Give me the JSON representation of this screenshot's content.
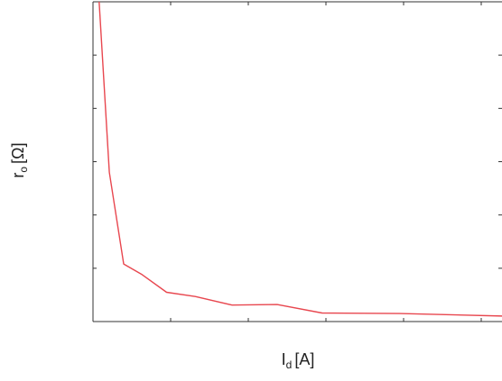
{
  "chart_data": {
    "type": "line",
    "title": "",
    "xlabel": "I",
    "xlabel_sub": "d",
    "xlabel_unit": "[A]",
    "ylabel": "r",
    "ylabel_sub": "o",
    "ylabel_unit": "[Ω]",
    "tick_labels_shown": false,
    "grid": false,
    "legend": "none",
    "xlim": [
      0,
      10
    ],
    "ylim": [
      0,
      6
    ],
    "x_tick_count": 10,
    "y_tick_count": 6,
    "series": [
      {
        "color": "#e8474f",
        "x": [
          0.15,
          0.4,
          0.75,
          1.2,
          1.8,
          2.5,
          3.4,
          4.5,
          5.6,
          7.5,
          10.2
        ],
        "y": [
          6.0,
          2.8,
          1.08,
          0.88,
          0.55,
          0.47,
          0.31,
          0.32,
          0.16,
          0.15,
          0.1
        ]
      }
    ]
  }
}
